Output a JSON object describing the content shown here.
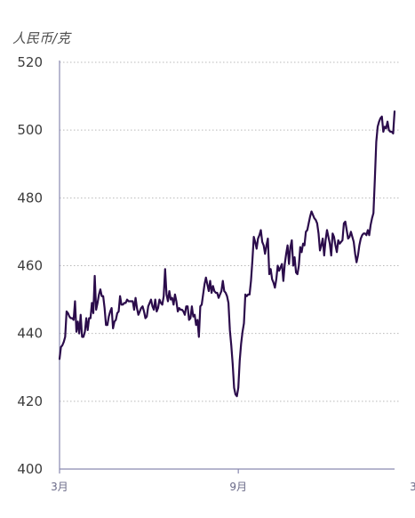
{
  "chart_data": {
    "type": "line",
    "unit_label": "人民币/克",
    "ylim": [
      400,
      520
    ],
    "yticks": [
      400,
      420,
      440,
      460,
      480,
      500,
      520
    ],
    "x_tick_labels": [
      {
        "label": "3月",
        "index": 0
      },
      {
        "label": "9月",
        "index": 127
      },
      {
        "label": "3月",
        "index": 255
      }
    ],
    "grid": true,
    "line_color": "#2b0c4b",
    "series": [
      {
        "values": [
          432.5,
          436.0,
          436.5,
          437.5,
          439.0,
          446.5,
          446.0,
          445.0,
          444.5,
          444.5,
          444.0,
          449.5,
          440.5,
          443.5,
          440.0,
          445.5,
          439.0,
          439.0,
          440.5,
          444.5,
          441.0,
          444.5,
          444.5,
          449.0,
          446.0,
          457.0,
          447.0,
          449.0,
          451.5,
          453.0,
          451.0,
          451.0,
          447.5,
          442.5,
          442.5,
          445.0,
          446.5,
          447.5,
          441.5,
          443.5,
          444.0,
          446.0,
          446.5,
          451.0,
          448.5,
          448.5,
          449.0,
          449.0,
          450.0,
          449.5,
          449.5,
          449.5,
          449.5,
          447.0,
          450.5,
          447.5,
          445.5,
          446.5,
          447.5,
          448.0,
          446.5,
          444.5,
          445.0,
          448.0,
          449.0,
          450.0,
          448.0,
          447.0,
          450.0,
          446.5,
          447.5,
          450.0,
          449.0,
          448.5,
          451.0,
          459.0,
          451.5,
          449.5,
          452.5,
          450.0,
          450.5,
          448.5,
          451.5,
          449.5,
          446.5,
          447.5,
          447.0,
          447.0,
          446.5,
          445.5,
          448.0,
          448.0,
          444.0,
          444.5,
          448.0,
          445.0,
          445.5,
          442.5,
          444.0,
          439.0,
          448.0,
          448.5,
          451.5,
          454.5,
          456.5,
          454.5,
          452.5,
          455.5,
          452.0,
          454.0,
          452.5,
          452.0,
          452.0,
          450.5,
          451.5,
          452.5,
          455.5,
          452.5,
          452.0,
          451.0,
          449.0,
          441.0,
          436.5,
          431.0,
          424.0,
          422.0,
          421.5,
          424.0,
          432.0,
          437.0,
          440.5,
          443.0,
          451.5,
          451.0,
          451.5,
          451.5,
          455.5,
          461.5,
          468.5,
          467.0,
          465.0,
          468.0,
          469.0,
          470.5,
          467.0,
          466.0,
          463.5,
          466.0,
          468.0,
          457.5,
          459.0,
          456.0,
          455.0,
          453.5,
          456.0,
          460.0,
          458.5,
          459.5,
          460.5,
          455.5,
          460.5,
          463.5,
          466.0,
          460.5,
          465.5,
          467.5,
          460.0,
          462.5,
          458.0,
          457.5,
          460.0,
          465.5,
          464.0,
          466.5,
          466.0,
          470.0,
          470.5,
          472.5,
          474.5,
          476.0,
          475.0,
          474.0,
          473.5,
          472.5,
          469.5,
          464.5,
          466.0,
          468.0,
          463.0,
          467.5,
          470.5,
          468.5,
          466.5,
          463.0,
          469.5,
          468.5,
          466.0,
          464.0,
          467.5,
          466.5,
          467.0,
          467.5,
          472.5,
          473.0,
          470.5,
          468.0,
          468.5,
          470.0,
          468.5,
          467.0,
          463.5,
          461.0,
          463.0,
          466.0,
          468.0,
          469.0,
          469.5,
          469.5,
          469.0,
          470.5,
          469.0,
          472.0,
          474.0,
          475.5,
          485.5,
          496.5,
          501.0,
          502.5,
          503.5,
          504.0,
          499.5,
          501.0,
          500.5,
          502.5,
          500.0,
          499.5,
          499.5,
          499.0,
          505.5
        ]
      }
    ]
  }
}
